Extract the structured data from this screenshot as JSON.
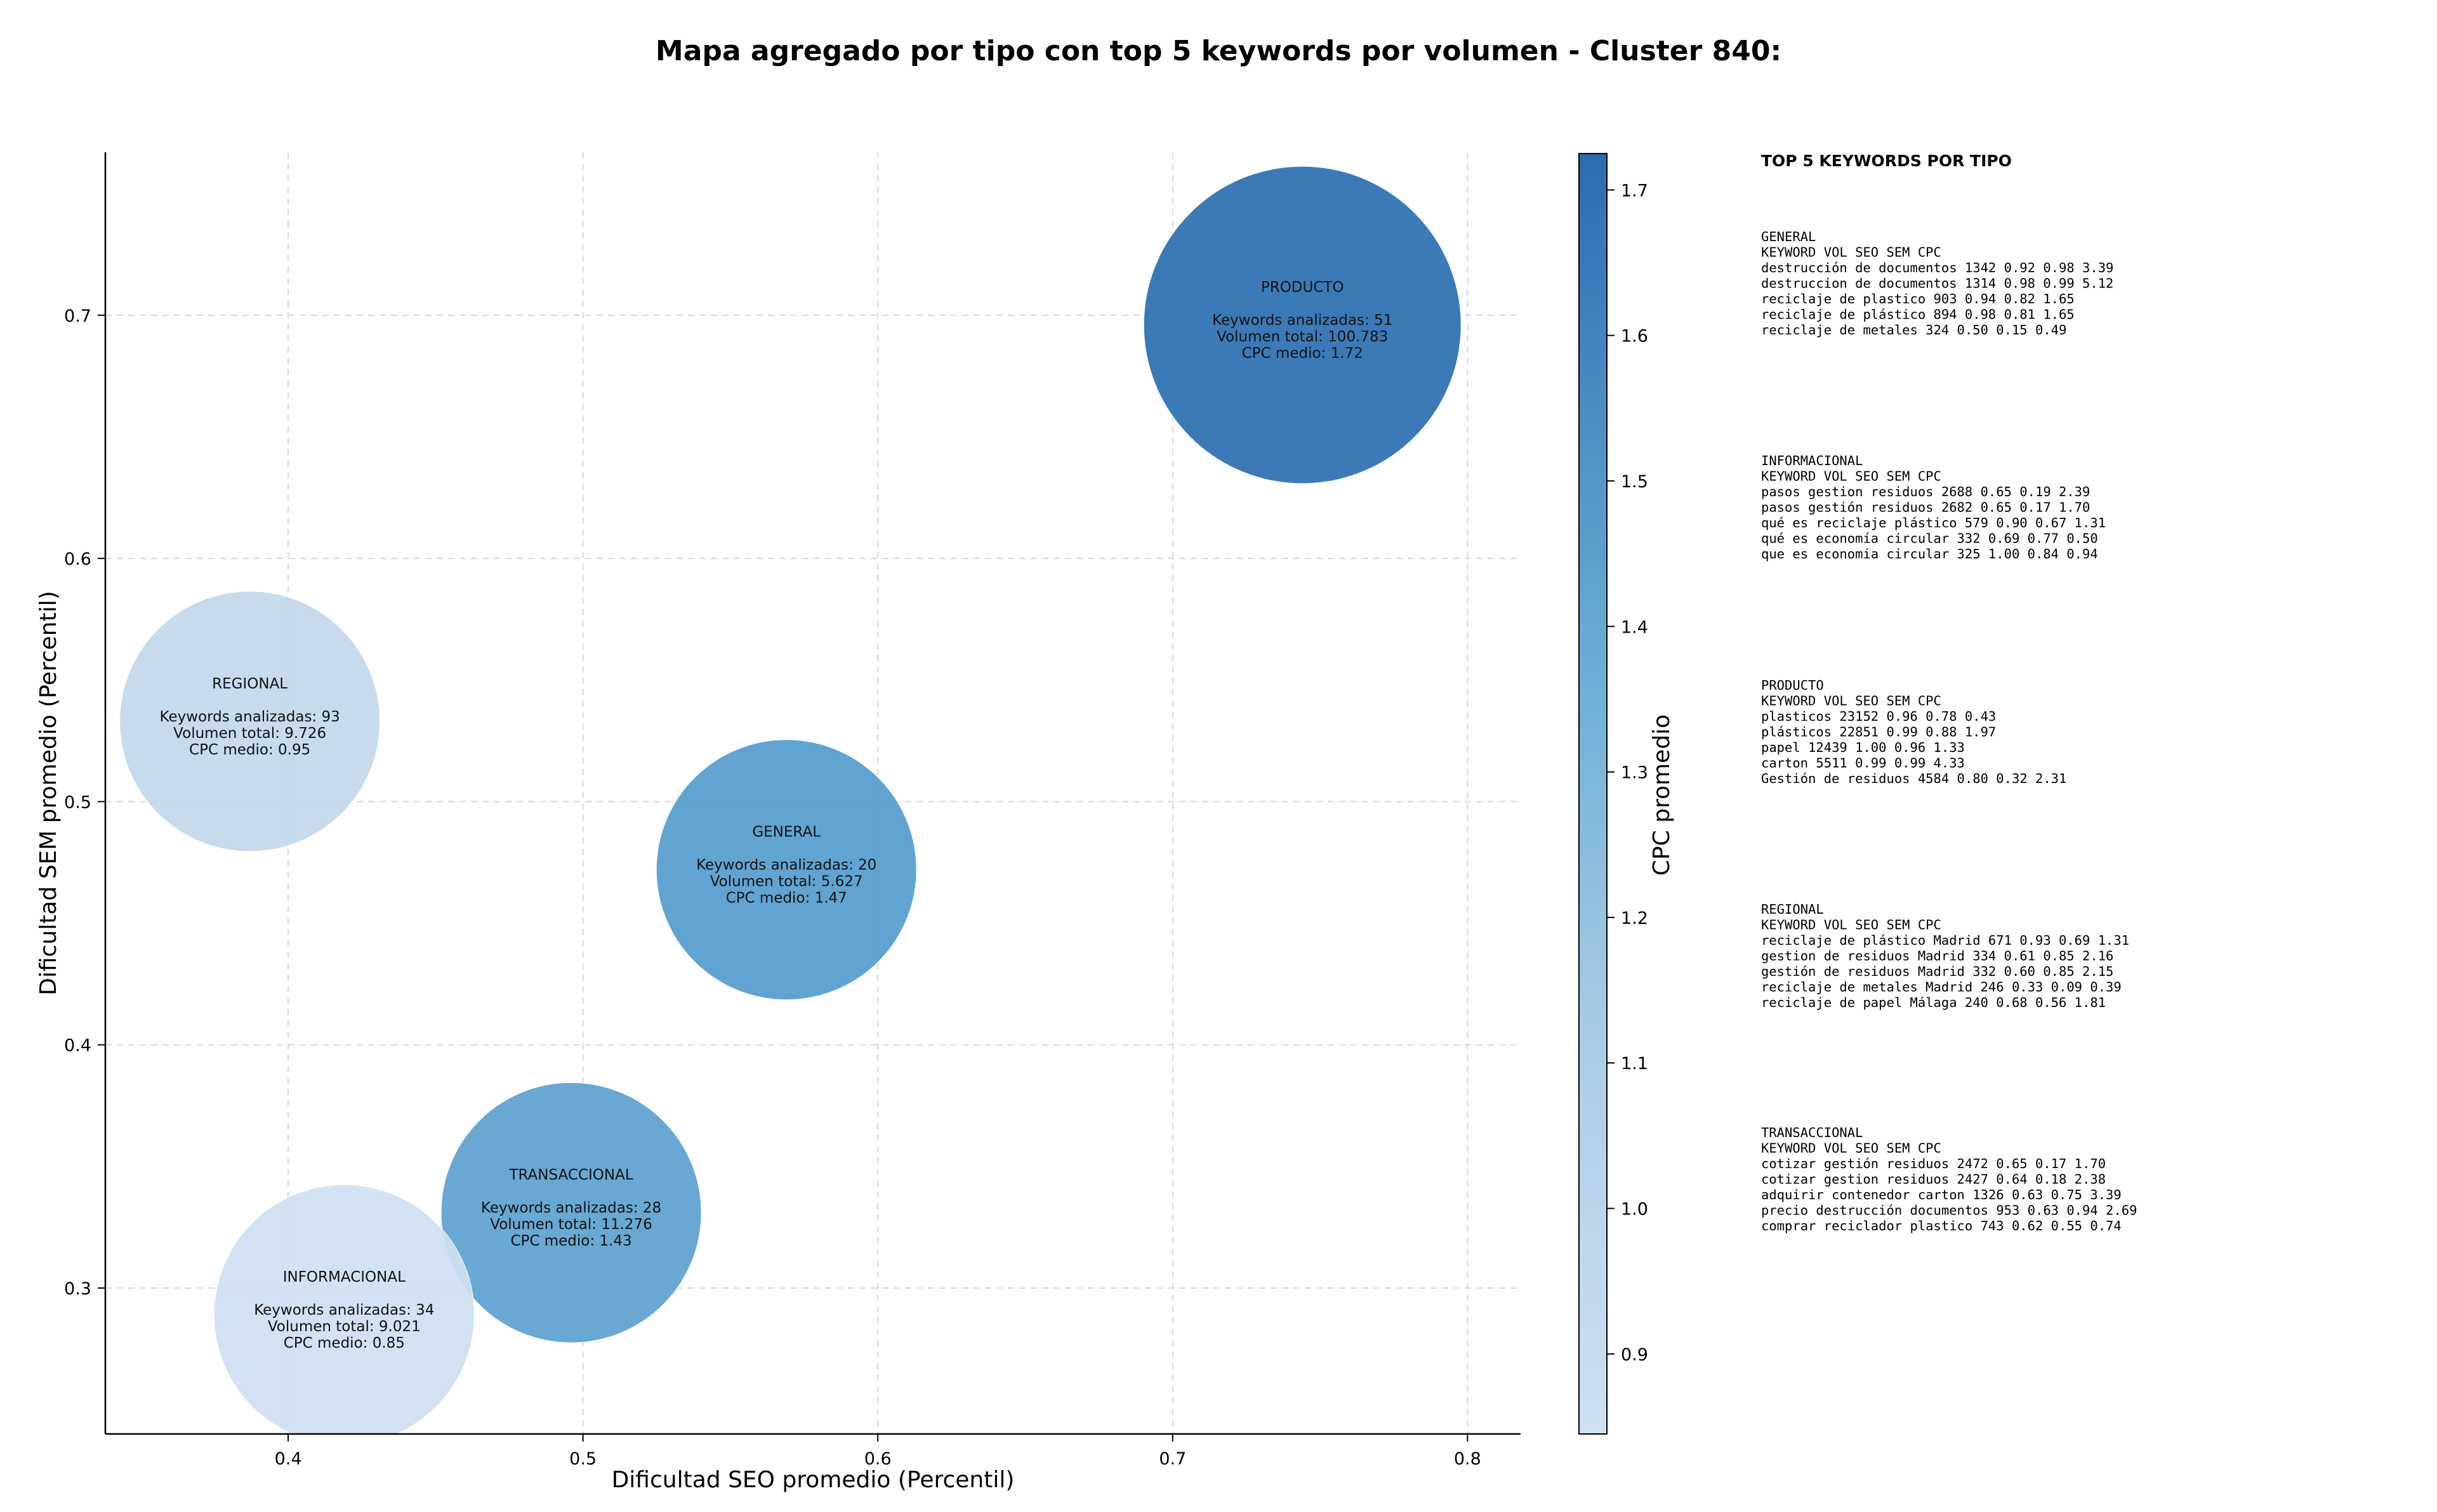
{
  "chart_data": {
    "type": "bubble",
    "title": "Mapa agregado por tipo con top 5 keywords por volumen - Cluster 840:",
    "xlabel": "Dificultad SEO promedio (Percentil)",
    "ylabel": "Dificultad SEM promedio (Percentil)",
    "xlim": [
      0.338,
      0.818
    ],
    "ylim": [
      0.24,
      0.767
    ],
    "x_ticks": [
      "0.4",
      "0.5",
      "0.6",
      "0.7",
      "0.8"
    ],
    "y_ticks": [
      "0.3",
      "0.4",
      "0.5",
      "0.6",
      "0.7"
    ],
    "grid": true,
    "colorbar": {
      "label": "CPC promedio",
      "min": 0.845,
      "max": 1.725,
      "ticks": [
        "0.9",
        "1.0",
        "1.1",
        "1.2",
        "1.3",
        "1.4",
        "1.5",
        "1.6",
        "1.7"
      ]
    },
    "bubbles": [
      {
        "name": "PRODUCTO",
        "x": 0.744,
        "y": 0.696,
        "keywords_label": "Keywords analizadas: 51",
        "volume_label": "Volumen total: 100.783",
        "cpc_label": "CPC medio: 1.72",
        "cpc": 1.72,
        "volume": 100783,
        "color": "#2d70b1"
      },
      {
        "name": "REGIONAL",
        "x": 0.387,
        "y": 0.533,
        "keywords_label": "Keywords analizadas: 93",
        "volume_label": "Volumen total: 9.726",
        "cpc_label": "CPC medio: 0.95",
        "cpc": 0.95,
        "volume": 9726,
        "color": "#c3d8ec"
      },
      {
        "name": "GENERAL",
        "x": 0.569,
        "y": 0.472,
        "keywords_label": "Keywords analizadas: 20",
        "volume_label": "Volumen total: 5.627",
        "cpc_label": "CPC medio: 1.47",
        "cpc": 1.47,
        "volume": 5627,
        "color": "#559dcd"
      },
      {
        "name": "TRANSACCIONAL",
        "x": 0.496,
        "y": 0.331,
        "keywords_label": "Keywords analizadas: 28",
        "volume_label": "Volumen total: 11.276",
        "cpc_label": "CPC medio: 1.43",
        "cpc": 1.43,
        "volume": 11276,
        "color": "#5ca1cf"
      },
      {
        "name": "INFORMACIONAL",
        "x": 0.419,
        "y": 0.289,
        "keywords_label": "Keywords analizadas: 34",
        "volume_label": "Volumen total: 9.021",
        "cpc_label": "CPC medio: 0.85",
        "cpc": 0.85,
        "volume": 9021,
        "color": "#cfe0f1"
      }
    ],
    "side_panel": {
      "heading": "TOP 5 KEYWORDS POR TIPO",
      "groups": [
        {
          "title": "GENERAL",
          "header": "KEYWORD                    VOL    SEO    SEM      CPC",
          "rows": [
            "destrucción de documentos   1342   0.92   0.98     3.39",
            "destruccion de documentos   1314   0.98   0.99     5.12",
            "reciclaje de plastico        903   0.94   0.82     1.65",
            "reciclaje de plástico        894   0.98   0.81     1.65",
            "reciclaje de metales         324   0.50   0.15     0.49"
          ]
        },
        {
          "title": "INFORMACIONAL",
          "header": "KEYWORD                    VOL    SEO    SEM      CPC",
          "rows": [
            "pasos gestion residuos      2688   0.65   0.19     2.39",
            "pasos gestión residuos      2682   0.65   0.17     1.70",
            "qué es reciclaje plástico    579   0.90   0.67     1.31",
            "qué es economía circular     332   0.69   0.77     0.50",
            "que es economia circular     325   1.00   0.84     0.94"
          ]
        },
        {
          "title": "PRODUCTO",
          "header": "KEYWORD               VOL    SEO    SEM      CPC",
          "rows": [
            "plasticos            23152   0.96   0.78     0.43",
            "plásticos            22851   0.99   0.88     1.97",
            "papel                12439   1.00   0.96     1.33",
            "carton                5511   0.99   0.99     4.33",
            "Gestión de residuos   4584   0.80   0.32     2.31"
          ]
        },
        {
          "title": "REGIONAL",
          "header": "KEYWORD                       VOL    SEO    SEM      CPC",
          "rows": [
            "reciclaje de plástico Madrid    671   0.93   0.69     1.31",
            "gestion de residuos Madrid      334   0.61   0.85     2.16",
            "gestión de residuos Madrid      332   0.60   0.85     2.15",
            "reciclaje de metales Madrid     246   0.33   0.09     0.39",
            "reciclaje de papel Málaga       240   0.68   0.56     1.81"
          ]
        },
        {
          "title": "TRANSACCIONAL",
          "header": "KEYWORD                        VOL    SEO    SEM      CPC",
          "rows": [
            "cotizar gestión residuos        2472   0.65   0.17     1.70",
            "cotizar gestion residuos        2427   0.64   0.18     2.38",
            "adquirir contenedor carton      1326   0.63   0.75     3.39",
            "precio destrucción documentos    953   0.63   0.94     2.69",
            "comprar reciclador plastico      743   0.62   0.55     0.74"
          ]
        }
      ]
    }
  }
}
